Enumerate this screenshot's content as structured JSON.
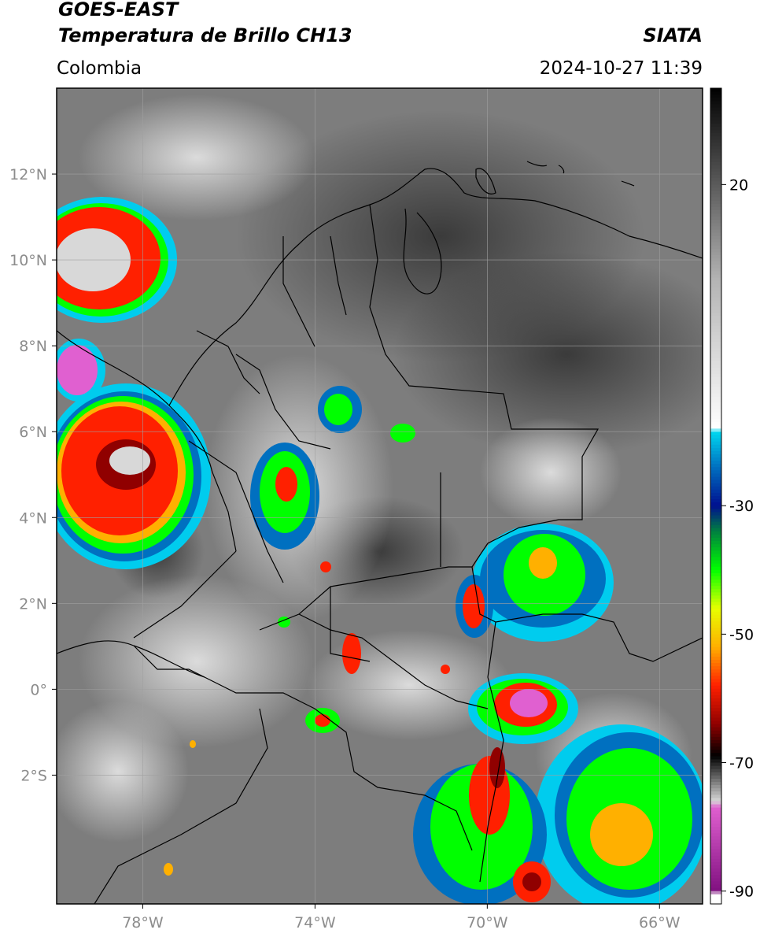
{
  "header": {
    "satellite": "GOES-EAST",
    "product": "Temperatura de Brillo CH13",
    "region": "Colombia",
    "agency": "SIATA",
    "datetime": "2024-10-27 11:39"
  },
  "map": {
    "lon_range": [
      -80,
      -65
    ],
    "lat_range": [
      -5,
      14
    ],
    "lat_ticks": [
      {
        "lat": 12,
        "label": "12°N"
      },
      {
        "lat": 10,
        "label": "10°N"
      },
      {
        "lat": 8,
        "label": "8°N"
      },
      {
        "lat": 6,
        "label": "6°N"
      },
      {
        "lat": 4,
        "label": "4°N"
      },
      {
        "lat": 2,
        "label": "2°N"
      },
      {
        "lat": 0,
        "label": "0°"
      },
      {
        "lat": -2,
        "label": "2°S"
      }
    ],
    "lon_ticks": [
      {
        "lon": -78,
        "label": "78°W"
      },
      {
        "lon": -74,
        "label": "74°W"
      },
      {
        "lon": -70,
        "label": "70°W"
      },
      {
        "lon": -66,
        "label": "66°W"
      }
    ]
  },
  "colorbar": {
    "range": [
      -92,
      35
    ],
    "ticks": [
      {
        "value": 20,
        "label": "20"
      },
      {
        "value": -30,
        "label": "-30"
      },
      {
        "value": -50,
        "label": "-50"
      },
      {
        "value": -70,
        "label": "-70"
      },
      {
        "value": -90,
        "label": "-90"
      }
    ],
    "stops": [
      {
        "value": 35,
        "color": "#000000"
      },
      {
        "value": 20,
        "color": "#5a5a5a"
      },
      {
        "value": 5,
        "color": "#b4b4b4"
      },
      {
        "value": -18,
        "color": "#ffffff"
      },
      {
        "value": -18.5,
        "color": "#00d8f0"
      },
      {
        "value": -24,
        "color": "#0070c0"
      },
      {
        "value": -30,
        "color": "#001090"
      },
      {
        "value": -34,
        "color": "#008040"
      },
      {
        "value": -40,
        "color": "#00ff00"
      },
      {
        "value": -46,
        "color": "#e8ff00"
      },
      {
        "value": -52,
        "color": "#ffb000"
      },
      {
        "value": -58,
        "color": "#ff2000"
      },
      {
        "value": -64,
        "color": "#900000"
      },
      {
        "value": -69,
        "color": "#000000"
      },
      {
        "value": -76,
        "color": "#d8d8d8"
      },
      {
        "value": -77,
        "color": "#e060d0"
      },
      {
        "value": -90,
        "color": "#801080"
      },
      {
        "value": -90.5,
        "color": "#ffffff"
      }
    ]
  }
}
